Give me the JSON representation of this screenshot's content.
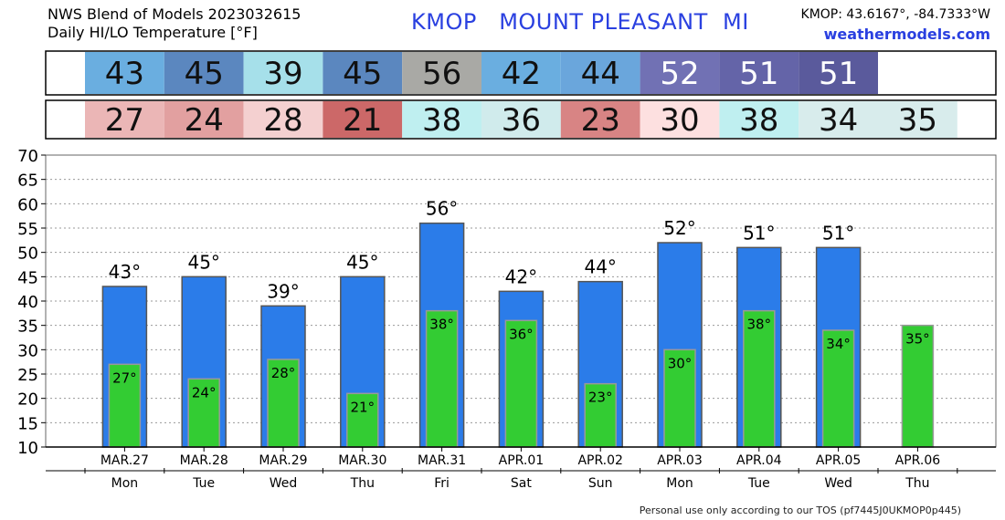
{
  "header": {
    "title_line1": "NWS Blend of Models 2023032615",
    "title_line2": "Daily HI/LO Temperature [°F]",
    "station": "KMOP   MOUNT PLEASANT  MI",
    "coords": "KMOP: 43.6167°, -84.7333°W",
    "site": "weathermodels.com"
  },
  "footer": "Personal use only according to our TOS (pf7445J0UKMOP0p445)",
  "colors": {
    "high_bar": "#2b7ce9",
    "low_bar": "#33cc33",
    "hi_cells": [
      "#6aaee0",
      "#5b87bf",
      "#a6e0ea",
      "#5b87bf",
      "#a9a9a5",
      "#6aaee0",
      "#6aa6dc",
      "#7171b4",
      "#6464a8",
      "#5a5a9c",
      "#ffffff"
    ],
    "lo_cells": [
      "#ebb6b6",
      "#e2a0a0",
      "#f4d0d0",
      "#cc6868",
      "#bfeff0",
      "#d0ebec",
      "#d88484",
      "#fde0e0",
      "#bfeff0",
      "#d8ecec",
      "#d8ecec"
    ]
  },
  "chart_data": {
    "type": "bar",
    "categories": [
      "MAR.27",
      "MAR.28",
      "MAR.29",
      "MAR.30",
      "MAR.31",
      "APR.01",
      "APR.02",
      "APR.03",
      "APR.04",
      "APR.05",
      "APR.06"
    ],
    "weekdays": [
      "Mon",
      "Tue",
      "Wed",
      "Thu",
      "Fri",
      "Sat",
      "Sun",
      "Mon",
      "Tue",
      "Wed",
      "Thu"
    ],
    "series": [
      {
        "values": [
          43,
          45,
          39,
          45,
          56,
          42,
          44,
          52,
          51,
          51,
          null
        ],
        "labels": [
          "43°",
          "45°",
          "39°",
          "45°",
          "56°",
          "42°",
          "44°",
          "52°",
          "51°",
          "51°",
          ""
        ],
        "box": [
          "43",
          "45",
          "39",
          "45",
          "56",
          "42",
          "44",
          "52",
          "51",
          "51",
          ""
        ]
      },
      {
        "values": [
          27,
          24,
          28,
          21,
          38,
          36,
          23,
          30,
          38,
          34,
          35
        ],
        "labels": [
          "27°",
          "24°",
          "28°",
          "21°",
          "38°",
          "36°",
          "23°",
          "30°",
          "38°",
          "34°",
          "35°"
        ],
        "box": [
          "27",
          "24",
          "28",
          "21",
          "38",
          "36",
          "23",
          "30",
          "38",
          "34",
          "35"
        ]
      }
    ],
    "ylim": [
      10,
      70
    ],
    "yticks": [
      "10",
      "15",
      "20",
      "25",
      "30",
      "35",
      "40",
      "45",
      "50",
      "55",
      "60",
      "65",
      "70"
    ],
    "grid": true
  }
}
